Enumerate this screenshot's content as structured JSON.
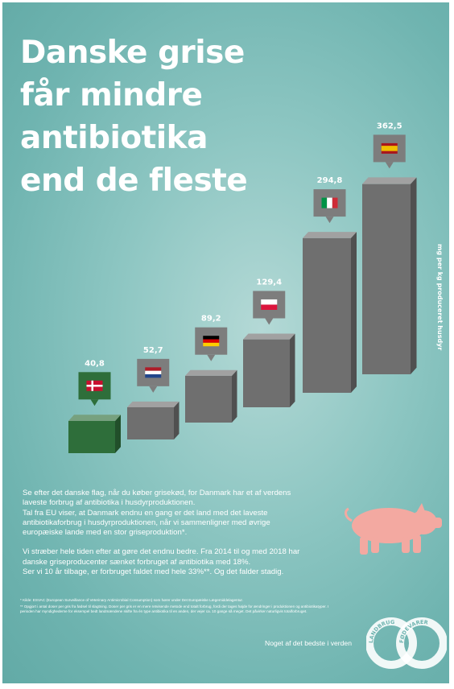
{
  "title_lines": [
    "Danske grise",
    "får mindre",
    "antibiotika",
    "end de fleste"
  ],
  "chart_data": {
    "type": "bar",
    "categories": [
      "Danmark",
      "Holland",
      "Tyskland",
      "Polen",
      "Italien",
      "Spanien"
    ],
    "values": [
      40.8,
      52.7,
      89.2,
      129.4,
      294.8,
      362.5
    ],
    "value_labels": [
      "40,8",
      "52,7",
      "89,2",
      "129,4",
      "294,8",
      "362,5"
    ],
    "flag_icons": [
      "denmark-flag-icon",
      "netherlands-flag-icon",
      "germany-flag-icon",
      "poland-flag-icon",
      "italy-flag-icon",
      "spain-flag-icon"
    ],
    "ylabel": "mg per kg produceret husdyr",
    "highlight_color": "#2e6e3a",
    "bar_color": "#6f6f6f"
  },
  "body": {
    "p1": "Se efter det danske flag, når du køber grisekød, for Danmark har et af verdens laveste forbrug af antibiotika i husdyrproduktionen.",
    "p2": "Tal fra EU viser, at Danmark endnu en gang er det land med det laveste antibiotikaforbrug i husdyrproduktionen, når vi sammenligner med øvrige europæiske lande med en stor griseproduktion*.",
    "p3": "Vi stræber hele tiden efter at gøre det endnu bedre. Fra 2014 til og med 2018 har danske griseproducenter sænket forbruget af antibiotika med 18%.",
    "p4": "Ser vi 10 år tilbage, er forbruget faldet med hele 33%**. Og det falder stadig."
  },
  "notes": {
    "n1": "* Kilde: ESVAC (European Surveillance of Veterinary Antimicrobial Consumption) som hører under Det Europæiske Lægemiddelagentur.",
    "n2": "** Opgjort i antal doser per gris fra fødsel til slagtning. Doser per gris er en mere retvisende metode end totalt forbrug, fordi der tages højde for ændringer i produktionen og antibiotikatyper. I perioden har myndighederne for eksempel bedt landmændene skifte fra én type antibiotika til en anden, der vejer ca. 10 gange så meget. Det påvirker naturligvis totalforbruget."
  },
  "tagline": "Noget af det bedste i verden",
  "logo": {
    "left_text": "LANDBRUG",
    "right_text": "FØDEVARER"
  }
}
